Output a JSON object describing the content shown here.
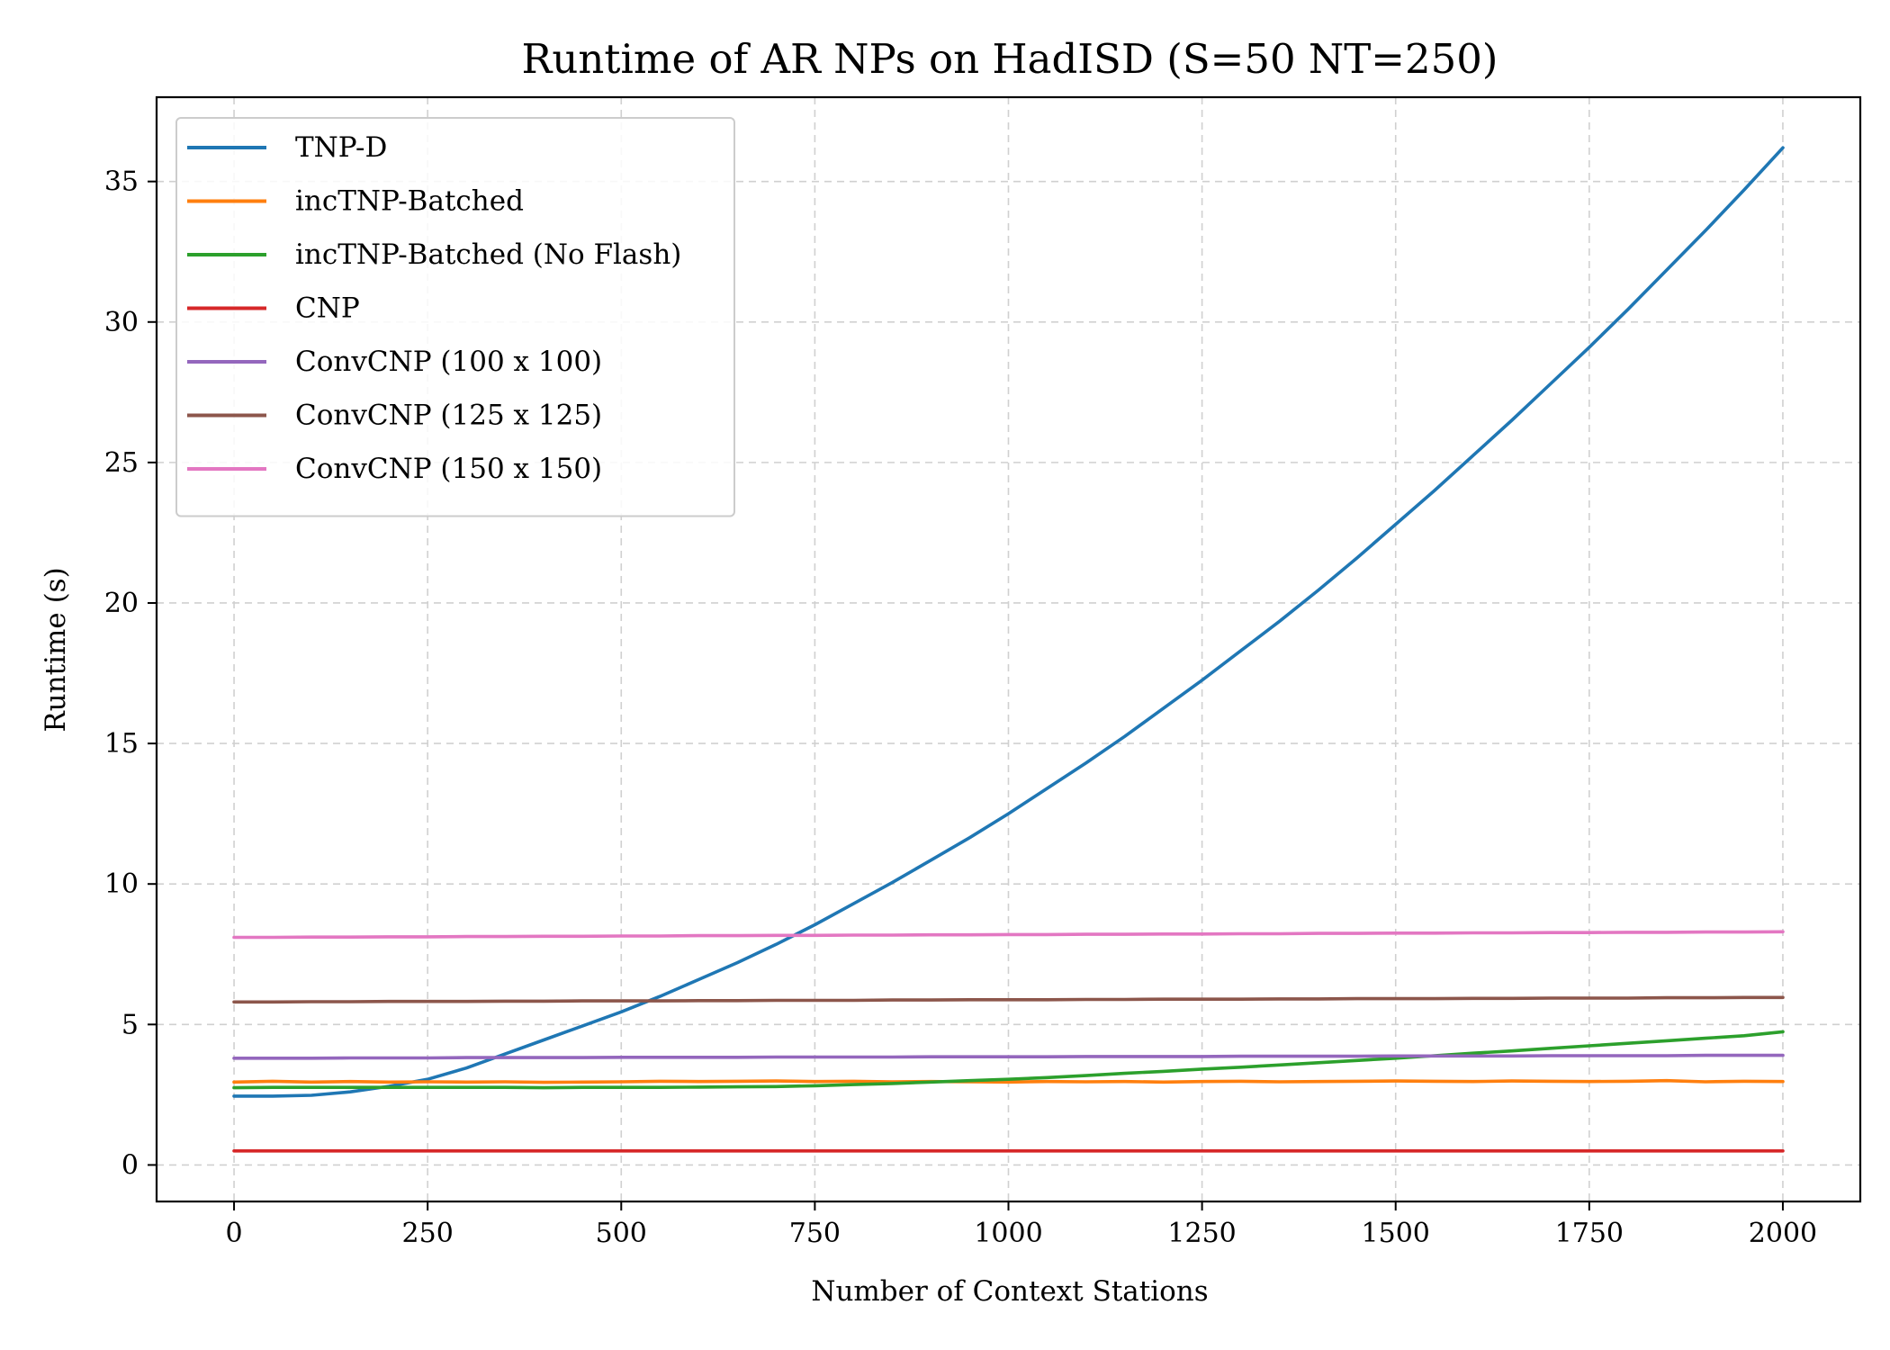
{
  "chart_data": {
    "type": "line",
    "title": "Runtime of AR NPs on HadISD (S=50 NT=250)",
    "xlabel": "Number of Context Stations",
    "ylabel": "Runtime (s)",
    "xlim": [
      -100,
      2100
    ],
    "ylim": [
      -1.3,
      38
    ],
    "x_ticks": [
      0,
      250,
      500,
      750,
      1000,
      1250,
      1500,
      1750,
      2000
    ],
    "y_ticks": [
      0,
      5,
      10,
      15,
      20,
      25,
      30,
      35
    ],
    "grid": true,
    "legend_position": "top-left",
    "x": [
      0,
      50,
      100,
      150,
      200,
      250,
      300,
      350,
      400,
      450,
      500,
      550,
      600,
      650,
      700,
      750,
      800,
      850,
      900,
      950,
      1000,
      1050,
      1100,
      1150,
      1200,
      1250,
      1300,
      1350,
      1400,
      1450,
      1500,
      1550,
      1600,
      1650,
      1700,
      1750,
      1800,
      1850,
      1900,
      1950,
      2000
    ],
    "series": [
      {
        "name": "TNP-D",
        "color": "#1f77b4",
        "values": [
          2.45,
          2.45,
          2.48,
          2.6,
          2.8,
          3.05,
          3.45,
          3.95,
          4.45,
          4.95,
          5.45,
          6.0,
          6.6,
          7.2,
          7.85,
          8.55,
          9.3,
          10.05,
          10.85,
          11.65,
          12.5,
          13.4,
          14.3,
          15.25,
          16.25,
          17.25,
          18.3,
          19.35,
          20.45,
          21.6,
          22.8,
          24.0,
          25.25,
          26.5,
          27.8,
          29.1,
          30.45,
          31.85,
          33.25,
          34.7,
          36.2
        ]
      },
      {
        "name": "incTNP-Batched",
        "color": "#ff7f0e",
        "values": [
          2.95,
          2.98,
          2.95,
          2.97,
          2.95,
          2.96,
          2.95,
          2.96,
          2.94,
          2.95,
          2.96,
          2.98,
          2.97,
          2.98,
          2.99,
          2.97,
          2.98,
          2.96,
          2.97,
          2.96,
          2.95,
          2.97,
          2.96,
          2.97,
          2.95,
          2.97,
          2.98,
          2.96,
          2.97,
          2.98,
          2.99,
          2.98,
          2.97,
          2.99,
          2.98,
          2.97,
          2.98,
          3.0,
          2.96,
          2.98,
          2.97
        ]
      },
      {
        "name": "incTNP-Batched (No Flash)",
        "color": "#2ca02c",
        "values": [
          2.75,
          2.76,
          2.76,
          2.76,
          2.76,
          2.76,
          2.76,
          2.76,
          2.75,
          2.76,
          2.76,
          2.76,
          2.77,
          2.78,
          2.79,
          2.82,
          2.86,
          2.9,
          2.95,
          3.0,
          3.05,
          3.11,
          3.18,
          3.26,
          3.33,
          3.41,
          3.48,
          3.56,
          3.64,
          3.72,
          3.8,
          3.89,
          3.98,
          4.06,
          4.15,
          4.24,
          4.33,
          4.42,
          4.51,
          4.6,
          4.74
        ]
      },
      {
        "name": "CNP",
        "color": "#d62728",
        "values": [
          0.5,
          0.5,
          0.5,
          0.5,
          0.5,
          0.5,
          0.5,
          0.5,
          0.5,
          0.5,
          0.5,
          0.5,
          0.5,
          0.5,
          0.5,
          0.5,
          0.5,
          0.5,
          0.5,
          0.5,
          0.5,
          0.5,
          0.5,
          0.5,
          0.5,
          0.5,
          0.5,
          0.5,
          0.5,
          0.5,
          0.5,
          0.5,
          0.5,
          0.5,
          0.5,
          0.5,
          0.5,
          0.5,
          0.5,
          0.5,
          0.5
        ]
      },
      {
        "name": "ConvCNP (100 x 100)",
        "color": "#9467bd",
        "values": [
          3.8,
          3.8,
          3.8,
          3.81,
          3.81,
          3.81,
          3.82,
          3.82,
          3.82,
          3.82,
          3.83,
          3.83,
          3.83,
          3.83,
          3.84,
          3.84,
          3.84,
          3.84,
          3.85,
          3.85,
          3.85,
          3.85,
          3.86,
          3.86,
          3.86,
          3.86,
          3.87,
          3.87,
          3.87,
          3.87,
          3.88,
          3.88,
          3.88,
          3.88,
          3.89,
          3.89,
          3.89,
          3.89,
          3.9,
          3.9,
          3.9
        ]
      },
      {
        "name": "ConvCNP (125 x 125)",
        "color": "#8c564b",
        "values": [
          5.8,
          5.8,
          5.81,
          5.81,
          5.82,
          5.82,
          5.82,
          5.83,
          5.83,
          5.84,
          5.84,
          5.84,
          5.85,
          5.85,
          5.86,
          5.86,
          5.86,
          5.87,
          5.87,
          5.88,
          5.88,
          5.88,
          5.89,
          5.89,
          5.9,
          5.9,
          5.9,
          5.91,
          5.91,
          5.92,
          5.92,
          5.92,
          5.93,
          5.93,
          5.94,
          5.94,
          5.94,
          5.95,
          5.95,
          5.96,
          5.96
        ]
      },
      {
        "name": "ConvCNP (150 x 150)",
        "color": "#e377c2",
        "values": [
          8.1,
          8.1,
          8.11,
          8.11,
          8.12,
          8.12,
          8.13,
          8.13,
          8.14,
          8.14,
          8.15,
          8.15,
          8.16,
          8.16,
          8.17,
          8.17,
          8.18,
          8.18,
          8.19,
          8.19,
          8.2,
          8.2,
          8.21,
          8.21,
          8.22,
          8.22,
          8.23,
          8.23,
          8.24,
          8.24,
          8.25,
          8.25,
          8.26,
          8.26,
          8.27,
          8.27,
          8.28,
          8.28,
          8.29,
          8.29,
          8.3
        ]
      }
    ]
  }
}
